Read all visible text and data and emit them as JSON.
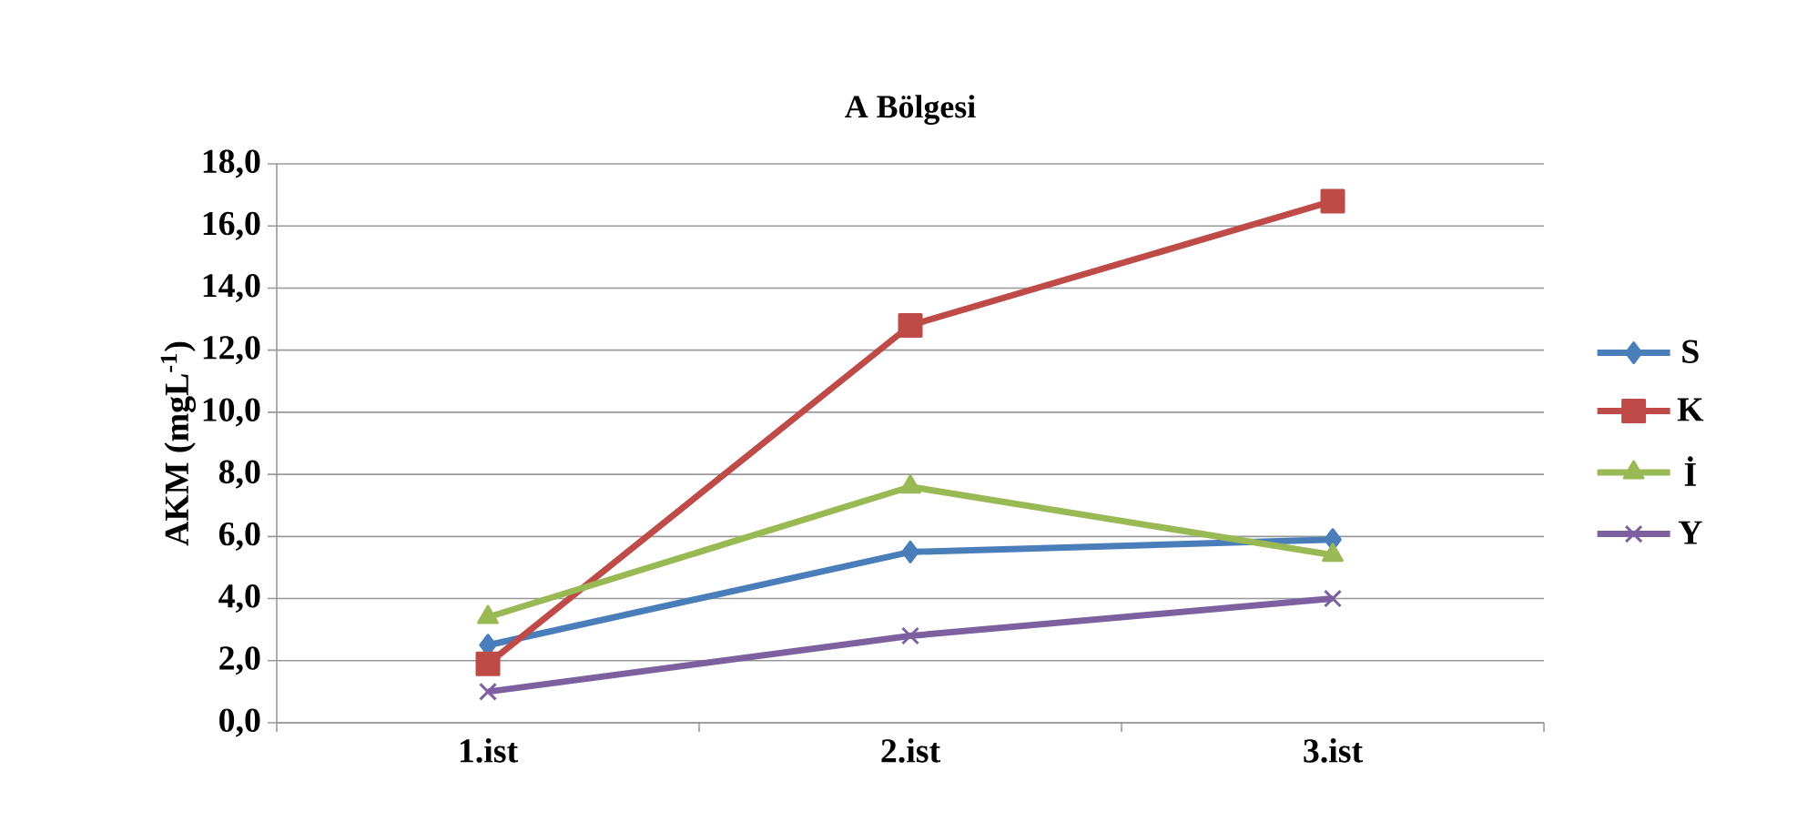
{
  "chart_data": {
    "type": "line",
    "title": "A Bölgesi",
    "ylabel": "AKM (mgL$^{-1}$)",
    "categories": [
      "1.ist",
      "2.ist",
      "3.ist"
    ],
    "series": [
      {
        "name": "S",
        "color": "#4a7ebb",
        "marker": "diamond",
        "values": [
          2.5,
          5.5,
          5.9
        ]
      },
      {
        "name": "K",
        "color": "#be4b48",
        "marker": "square",
        "values": [
          1.9,
          12.8,
          16.8
        ]
      },
      {
        "name": "İ",
        "color": "#98b954",
        "marker": "triangle",
        "values": [
          3.4,
          7.6,
          5.4
        ]
      },
      {
        "name": "Y",
        "color": "#7d60a0",
        "marker": "cross",
        "values": [
          1.0,
          2.8,
          4.0
        ]
      }
    ],
    "ylim": [
      0,
      18
    ],
    "yticks": [
      {
        "value": 0,
        "label": "0,0"
      },
      {
        "value": 2,
        "label": "2,0"
      },
      {
        "value": 4,
        "label": "4,0"
      },
      {
        "value": 6,
        "label": "6,0"
      },
      {
        "value": 8,
        "label": "8,0"
      },
      {
        "value": 10,
        "label": "10,0"
      },
      {
        "value": 12,
        "label": "12,0"
      },
      {
        "value": 14,
        "label": "14,0"
      },
      {
        "value": 16,
        "label": "16,0"
      },
      {
        "value": 18,
        "label": "18,0"
      }
    ],
    "grid": "y",
    "legend": "right",
    "line_style": "solid"
  }
}
